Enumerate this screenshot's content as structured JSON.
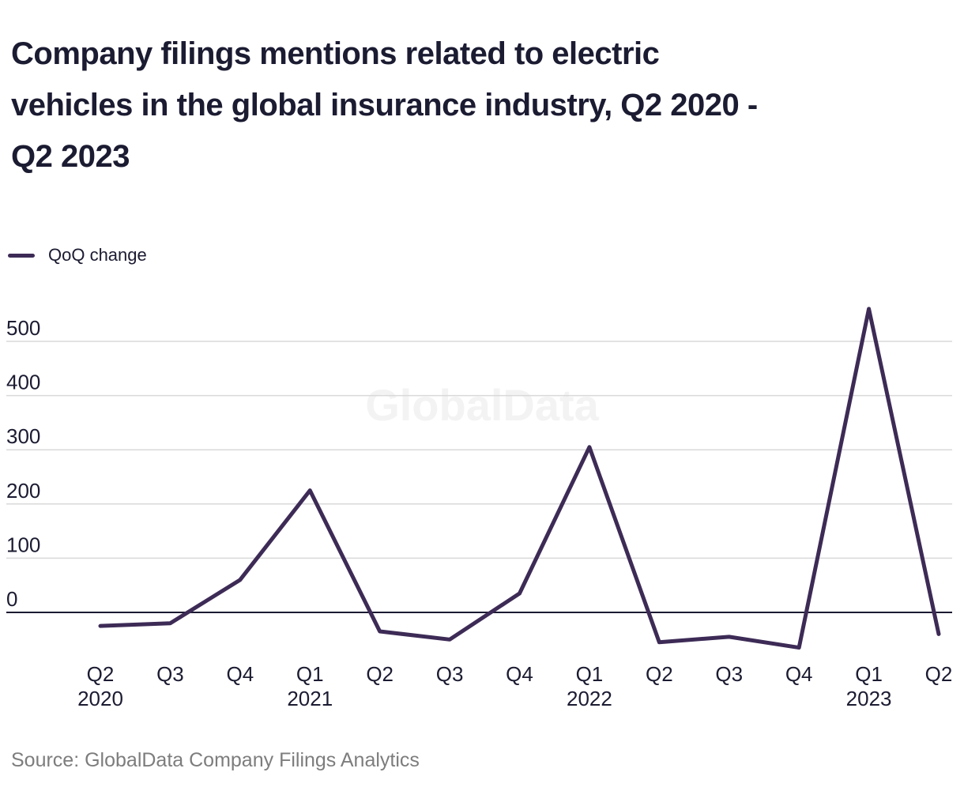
{
  "title_lines": [
    "Company filings mentions related to electric",
    "vehicles in the global insurance industry, Q2 2020 -",
    "Q2 2023"
  ],
  "title_full": "Company filings mentions related to electric vehicles in the global insurance industry, Q2 2020 - Q2 2023",
  "legend": {
    "label": "QoQ change"
  },
  "watermark": "GlobalData",
  "source": "Source: GlobalData Company Filings Analytics",
  "colors": {
    "line": "#3d2b56",
    "text": "#1b1b32",
    "grid": "#d9d9d9",
    "zero_line": "#1b1b32",
    "watermark": "#f3f3f3",
    "source_text": "#7d7d7d"
  },
  "chart_data": {
    "type": "line",
    "title": "Company filings mentions related to electric vehicles in the global insurance industry, Q2 2020 - Q2 2023",
    "categories": [
      "Q2",
      "Q3",
      "Q4",
      "Q1",
      "Q2",
      "Q3",
      "Q4",
      "Q1",
      "Q2",
      "Q3",
      "Q4",
      "Q1",
      "Q2"
    ],
    "category_years": [
      "2020",
      "",
      "",
      "2021",
      "",
      "",
      "",
      "2022",
      "",
      "",
      "",
      "2023",
      ""
    ],
    "series": [
      {
        "name": "QoQ change",
        "values": [
          -25,
          -20,
          60,
          225,
          -35,
          -50,
          35,
          305,
          -55,
          -45,
          -65,
          560,
          -40
        ]
      }
    ],
    "yticks": [
      0,
      100,
      200,
      300,
      400,
      500
    ],
    "ylim": [
      -80,
      560
    ],
    "xlabel": "",
    "ylabel": "",
    "grid": "horizontal",
    "legend_position": "top-left"
  }
}
